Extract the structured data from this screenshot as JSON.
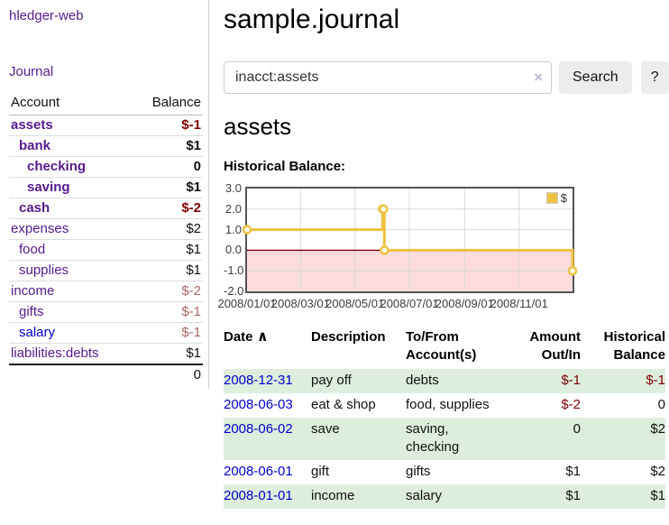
{
  "app": {
    "brand": "hledger-web",
    "nav_journal": "Journal"
  },
  "colors": {
    "link_visited": "#551a8b",
    "link_unvisited": "#0000cc",
    "negative": "#800000",
    "negative_muted": "#a86868",
    "row_stripe_green": "#ddeedd",
    "chart_line_gold": "#edc240",
    "chart_negative_bg": "#fbdbdb",
    "chart_zero_line": "#800000",
    "chart_border": "#545454"
  },
  "sidebar": {
    "header": {
      "account": "Account",
      "balance": "Balance"
    },
    "accounts": [
      {
        "name": "assets",
        "depth": 1,
        "balance": "$-1",
        "bold": true,
        "neg": "strong",
        "link": "visited"
      },
      {
        "name": "bank",
        "depth": 2,
        "balance": "$1",
        "bold": true,
        "neg": "none",
        "link": "visited"
      },
      {
        "name": "checking",
        "depth": 3,
        "balance": "0",
        "bold": true,
        "neg": "none",
        "link": "visited"
      },
      {
        "name": "saving",
        "depth": 3,
        "balance": "$1",
        "bold": true,
        "neg": "none",
        "link": "visited"
      },
      {
        "name": "cash",
        "depth": 2,
        "balance": "$-2",
        "bold": true,
        "neg": "strong",
        "link": "visited"
      },
      {
        "name": "expenses",
        "depth": 1,
        "balance": "$2",
        "bold": false,
        "neg": "none",
        "link": "visited"
      },
      {
        "name": "food",
        "depth": 2,
        "balance": "$1",
        "bold": false,
        "neg": "none",
        "link": "visited"
      },
      {
        "name": "supplies",
        "depth": 2,
        "balance": "$1",
        "bold": false,
        "neg": "none",
        "link": "visited"
      },
      {
        "name": "income",
        "depth": 1,
        "balance": "$-2",
        "bold": false,
        "neg": "soft",
        "link": "visited"
      },
      {
        "name": "gifts",
        "depth": 2,
        "balance": "$-1",
        "bold": false,
        "neg": "soft",
        "link": "visited"
      },
      {
        "name": "salary",
        "depth": 2,
        "balance": "$-1",
        "bold": false,
        "neg": "soft",
        "link": "unvisited"
      },
      {
        "name": "liabilities:debts",
        "depth": 1,
        "balance": "$1",
        "bold": false,
        "neg": "none",
        "link": "visited"
      }
    ],
    "total": "0"
  },
  "main": {
    "title": "sample.journal",
    "search": {
      "value": "inacct:assets",
      "clear_icon": "×",
      "button": "Search",
      "help_button": "?"
    },
    "account_heading": "assets",
    "chart_label": "Historical Balance:"
  },
  "chart_data": {
    "type": "line",
    "title": "Historical Balance:",
    "steps": true,
    "series": [
      {
        "name": "$",
        "color": "#edc240",
        "points": [
          [
            "2008-01-01",
            1
          ],
          [
            "2008-06-01",
            2
          ],
          [
            "2008-06-02",
            2
          ],
          [
            "2008-06-03",
            0
          ],
          [
            "2008-12-31",
            -1
          ]
        ]
      }
    ],
    "x_range": [
      "2008-01-01",
      "2008-12-31"
    ],
    "x_ticks": [
      "2008/01/01",
      "2008/03/01",
      "2008/05/01",
      "2008/07/01",
      "2008/09/01",
      "2008/11/01"
    ],
    "y_ticks": [
      "3.0",
      "2.0",
      "1.0",
      "0.0",
      "-1.0",
      "-2.0"
    ],
    "ylim": [
      -2,
      3
    ],
    "grid": true,
    "legend_position": "top-right",
    "legend_label": "$"
  },
  "register": {
    "headers": {
      "date": "Date",
      "sort_icon": "∧",
      "description": "Description",
      "accounts": "To/From Account(s)",
      "amount": "Amount Out/In",
      "balance": "Historical Balance"
    },
    "rows": [
      {
        "date": "2008-12-31",
        "description": "pay off",
        "accounts": "debts",
        "amount": "$-1",
        "amount_neg": true,
        "balance": "$-1",
        "balance_neg": true
      },
      {
        "date": "2008-06-03",
        "description": "eat & shop",
        "accounts": "food, supplies",
        "amount": "$-2",
        "amount_neg": true,
        "balance": "0",
        "balance_neg": false
      },
      {
        "date": "2008-06-02",
        "description": "save",
        "accounts": "saving,\nchecking",
        "amount": "0",
        "amount_neg": false,
        "balance": "$2",
        "balance_neg": false
      },
      {
        "date": "2008-06-01",
        "description": "gift",
        "accounts": "gifts",
        "amount": "$1",
        "amount_neg": false,
        "balance": "$2",
        "balance_neg": false
      },
      {
        "date": "2008-01-01",
        "description": "income",
        "accounts": "salary",
        "amount": "$1",
        "amount_neg": false,
        "balance": "$1",
        "balance_neg": false
      }
    ]
  }
}
